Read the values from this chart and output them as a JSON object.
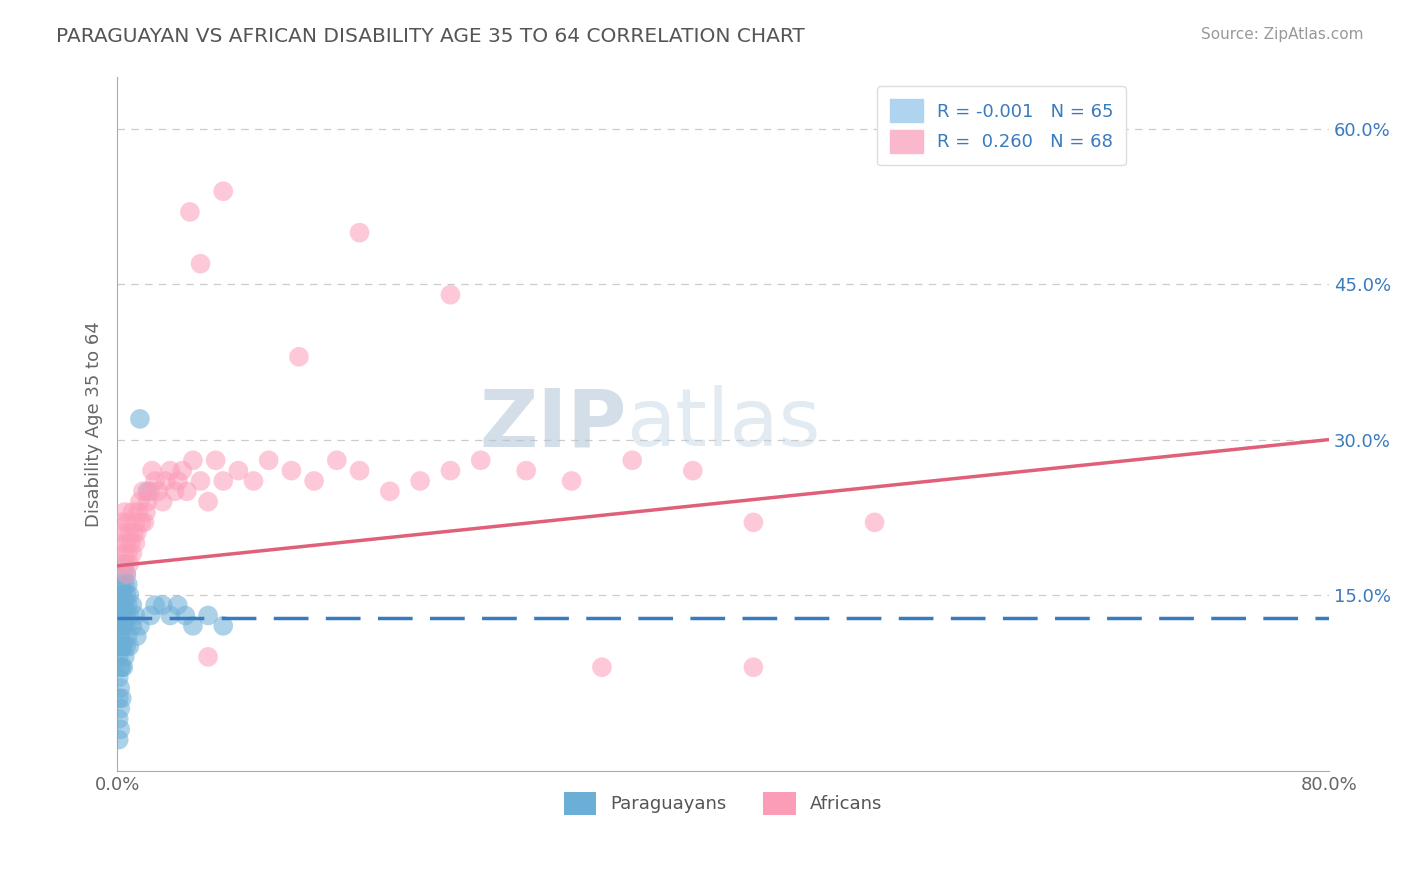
{
  "title": "PARAGUAYAN VS AFRICAN DISABILITY AGE 35 TO 64 CORRELATION CHART",
  "source": "Source: ZipAtlas.com",
  "ylabel": "Disability Age 35 to 64",
  "xlim": [
    0.0,
    0.8
  ],
  "ylim": [
    -0.02,
    0.65
  ],
  "xtick_positions": [
    0.0,
    0.1,
    0.2,
    0.3,
    0.4,
    0.5,
    0.6,
    0.7,
    0.8
  ],
  "xticklabels": [
    "0.0%",
    "",
    "",
    "",
    "",
    "",
    "",
    "",
    "80.0%"
  ],
  "ytick_positions": [
    0.15,
    0.3,
    0.45,
    0.6
  ],
  "ytick_labels": [
    "15.0%",
    "30.0%",
    "45.0%",
    "60.0%"
  ],
  "blue_R": -0.001,
  "blue_N": 65,
  "pink_R": 0.26,
  "pink_N": 68,
  "blue_color": "#6baed6",
  "pink_color": "#fc9db8",
  "blue_line_color": "#3a7abf",
  "pink_line_color": "#e0607a",
  "background_color": "#ffffff",
  "grid_color": "#cccccc",
  "blue_trend_y0": 0.128,
  "blue_trend_y1": 0.128,
  "pink_trend_y0": 0.178,
  "pink_trend_y1": 0.3,
  "blue_x": [
    0.001,
    0.001,
    0.001,
    0.001,
    0.001,
    0.001,
    0.001,
    0.001,
    0.001,
    0.001,
    0.002,
    0.002,
    0.002,
    0.002,
    0.002,
    0.002,
    0.002,
    0.002,
    0.002,
    0.002,
    0.003,
    0.003,
    0.003,
    0.003,
    0.003,
    0.003,
    0.003,
    0.003,
    0.004,
    0.004,
    0.004,
    0.004,
    0.004,
    0.004,
    0.005,
    0.005,
    0.005,
    0.005,
    0.005,
    0.006,
    0.006,
    0.006,
    0.006,
    0.007,
    0.007,
    0.007,
    0.008,
    0.008,
    0.008,
    0.01,
    0.01,
    0.012,
    0.013,
    0.015,
    0.015,
    0.02,
    0.022,
    0.025,
    0.03,
    0.035,
    0.04,
    0.045,
    0.05,
    0.06,
    0.07
  ],
  "blue_y": [
    0.14,
    0.13,
    0.12,
    0.11,
    0.1,
    0.09,
    0.07,
    0.05,
    0.03,
    0.01,
    0.15,
    0.14,
    0.13,
    0.12,
    0.11,
    0.1,
    0.08,
    0.06,
    0.04,
    0.02,
    0.16,
    0.15,
    0.14,
    0.13,
    0.12,
    0.1,
    0.08,
    0.05,
    0.17,
    0.15,
    0.14,
    0.12,
    0.1,
    0.08,
    0.18,
    0.16,
    0.14,
    0.12,
    0.09,
    0.17,
    0.15,
    0.13,
    0.1,
    0.16,
    0.14,
    0.11,
    0.15,
    0.13,
    0.1,
    0.14,
    0.12,
    0.13,
    0.11,
    0.32,
    0.12,
    0.25,
    0.13,
    0.14,
    0.14,
    0.13,
    0.14,
    0.13,
    0.12,
    0.13,
    0.12
  ],
  "pink_x": [
    0.002,
    0.003,
    0.003,
    0.004,
    0.005,
    0.005,
    0.006,
    0.006,
    0.007,
    0.007,
    0.008,
    0.008,
    0.009,
    0.01,
    0.01,
    0.011,
    0.012,
    0.012,
    0.013,
    0.014,
    0.015,
    0.016,
    0.017,
    0.018,
    0.019,
    0.02,
    0.022,
    0.023,
    0.025,
    0.027,
    0.03,
    0.032,
    0.035,
    0.038,
    0.04,
    0.043,
    0.046,
    0.05,
    0.055,
    0.06,
    0.065,
    0.07,
    0.08,
    0.09,
    0.1,
    0.115,
    0.13,
    0.145,
    0.16,
    0.18,
    0.2,
    0.22,
    0.24,
    0.27,
    0.3,
    0.34,
    0.38,
    0.42,
    0.048,
    0.055,
    0.07,
    0.12,
    0.16,
    0.22,
    0.32,
    0.42,
    0.5,
    0.06
  ],
  "pink_y": [
    0.2,
    0.22,
    0.18,
    0.21,
    0.19,
    0.23,
    0.2,
    0.17,
    0.22,
    0.19,
    0.21,
    0.18,
    0.2,
    0.23,
    0.19,
    0.21,
    0.22,
    0.2,
    0.21,
    0.23,
    0.24,
    0.22,
    0.25,
    0.22,
    0.23,
    0.24,
    0.25,
    0.27,
    0.26,
    0.25,
    0.24,
    0.26,
    0.27,
    0.25,
    0.26,
    0.27,
    0.25,
    0.28,
    0.26,
    0.24,
    0.28,
    0.26,
    0.27,
    0.26,
    0.28,
    0.27,
    0.26,
    0.28,
    0.27,
    0.25,
    0.26,
    0.27,
    0.28,
    0.27,
    0.26,
    0.28,
    0.27,
    0.22,
    0.52,
    0.47,
    0.54,
    0.38,
    0.5,
    0.44,
    0.08,
    0.08,
    0.22,
    0.09
  ]
}
